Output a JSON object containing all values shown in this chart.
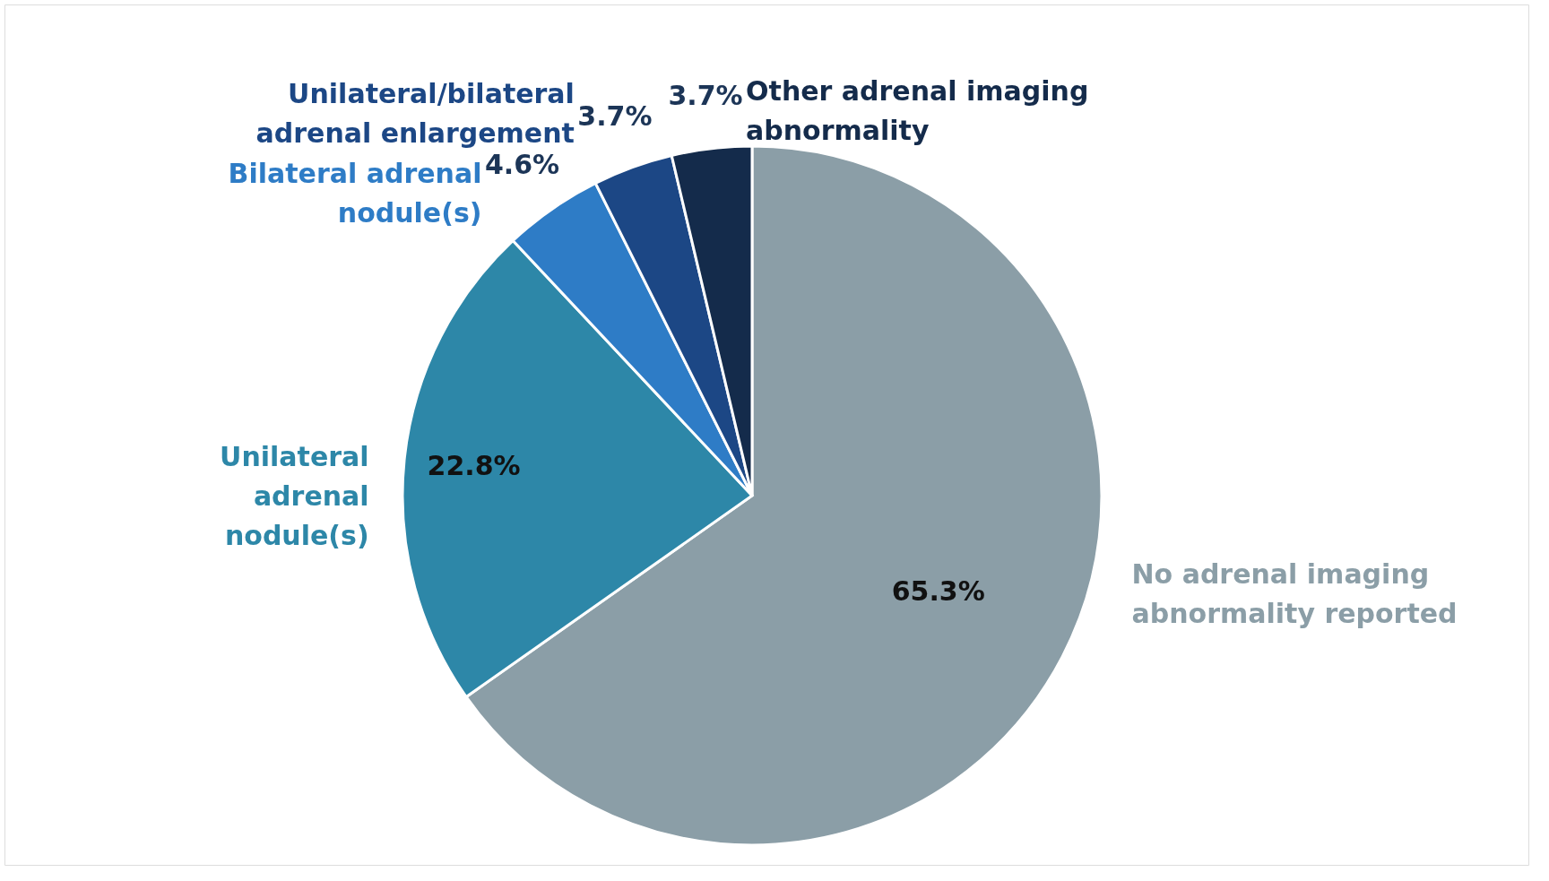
{
  "chart_data": {
    "type": "pie",
    "categories": [
      "No adrenal imaging\nabnormality reported",
      "Unilateral\nadrenal\nnodule(s)",
      "Bilateral adrenal\nnodule(s)",
      "Unilateral/bilateral\nadrenal enlargement",
      "Other adrenal imaging\nabnormality"
    ],
    "values": [
      65.3,
      22.8,
      4.6,
      3.7,
      3.7
    ],
    "colors": [
      "#8b9ea7",
      "#2d87a8",
      "#2e7cc6",
      "#1c4785",
      "#142b4b"
    ],
    "value_labels": [
      "65.3%",
      "22.8%",
      "4.6%",
      "3.7%",
      "3.7%"
    ]
  }
}
